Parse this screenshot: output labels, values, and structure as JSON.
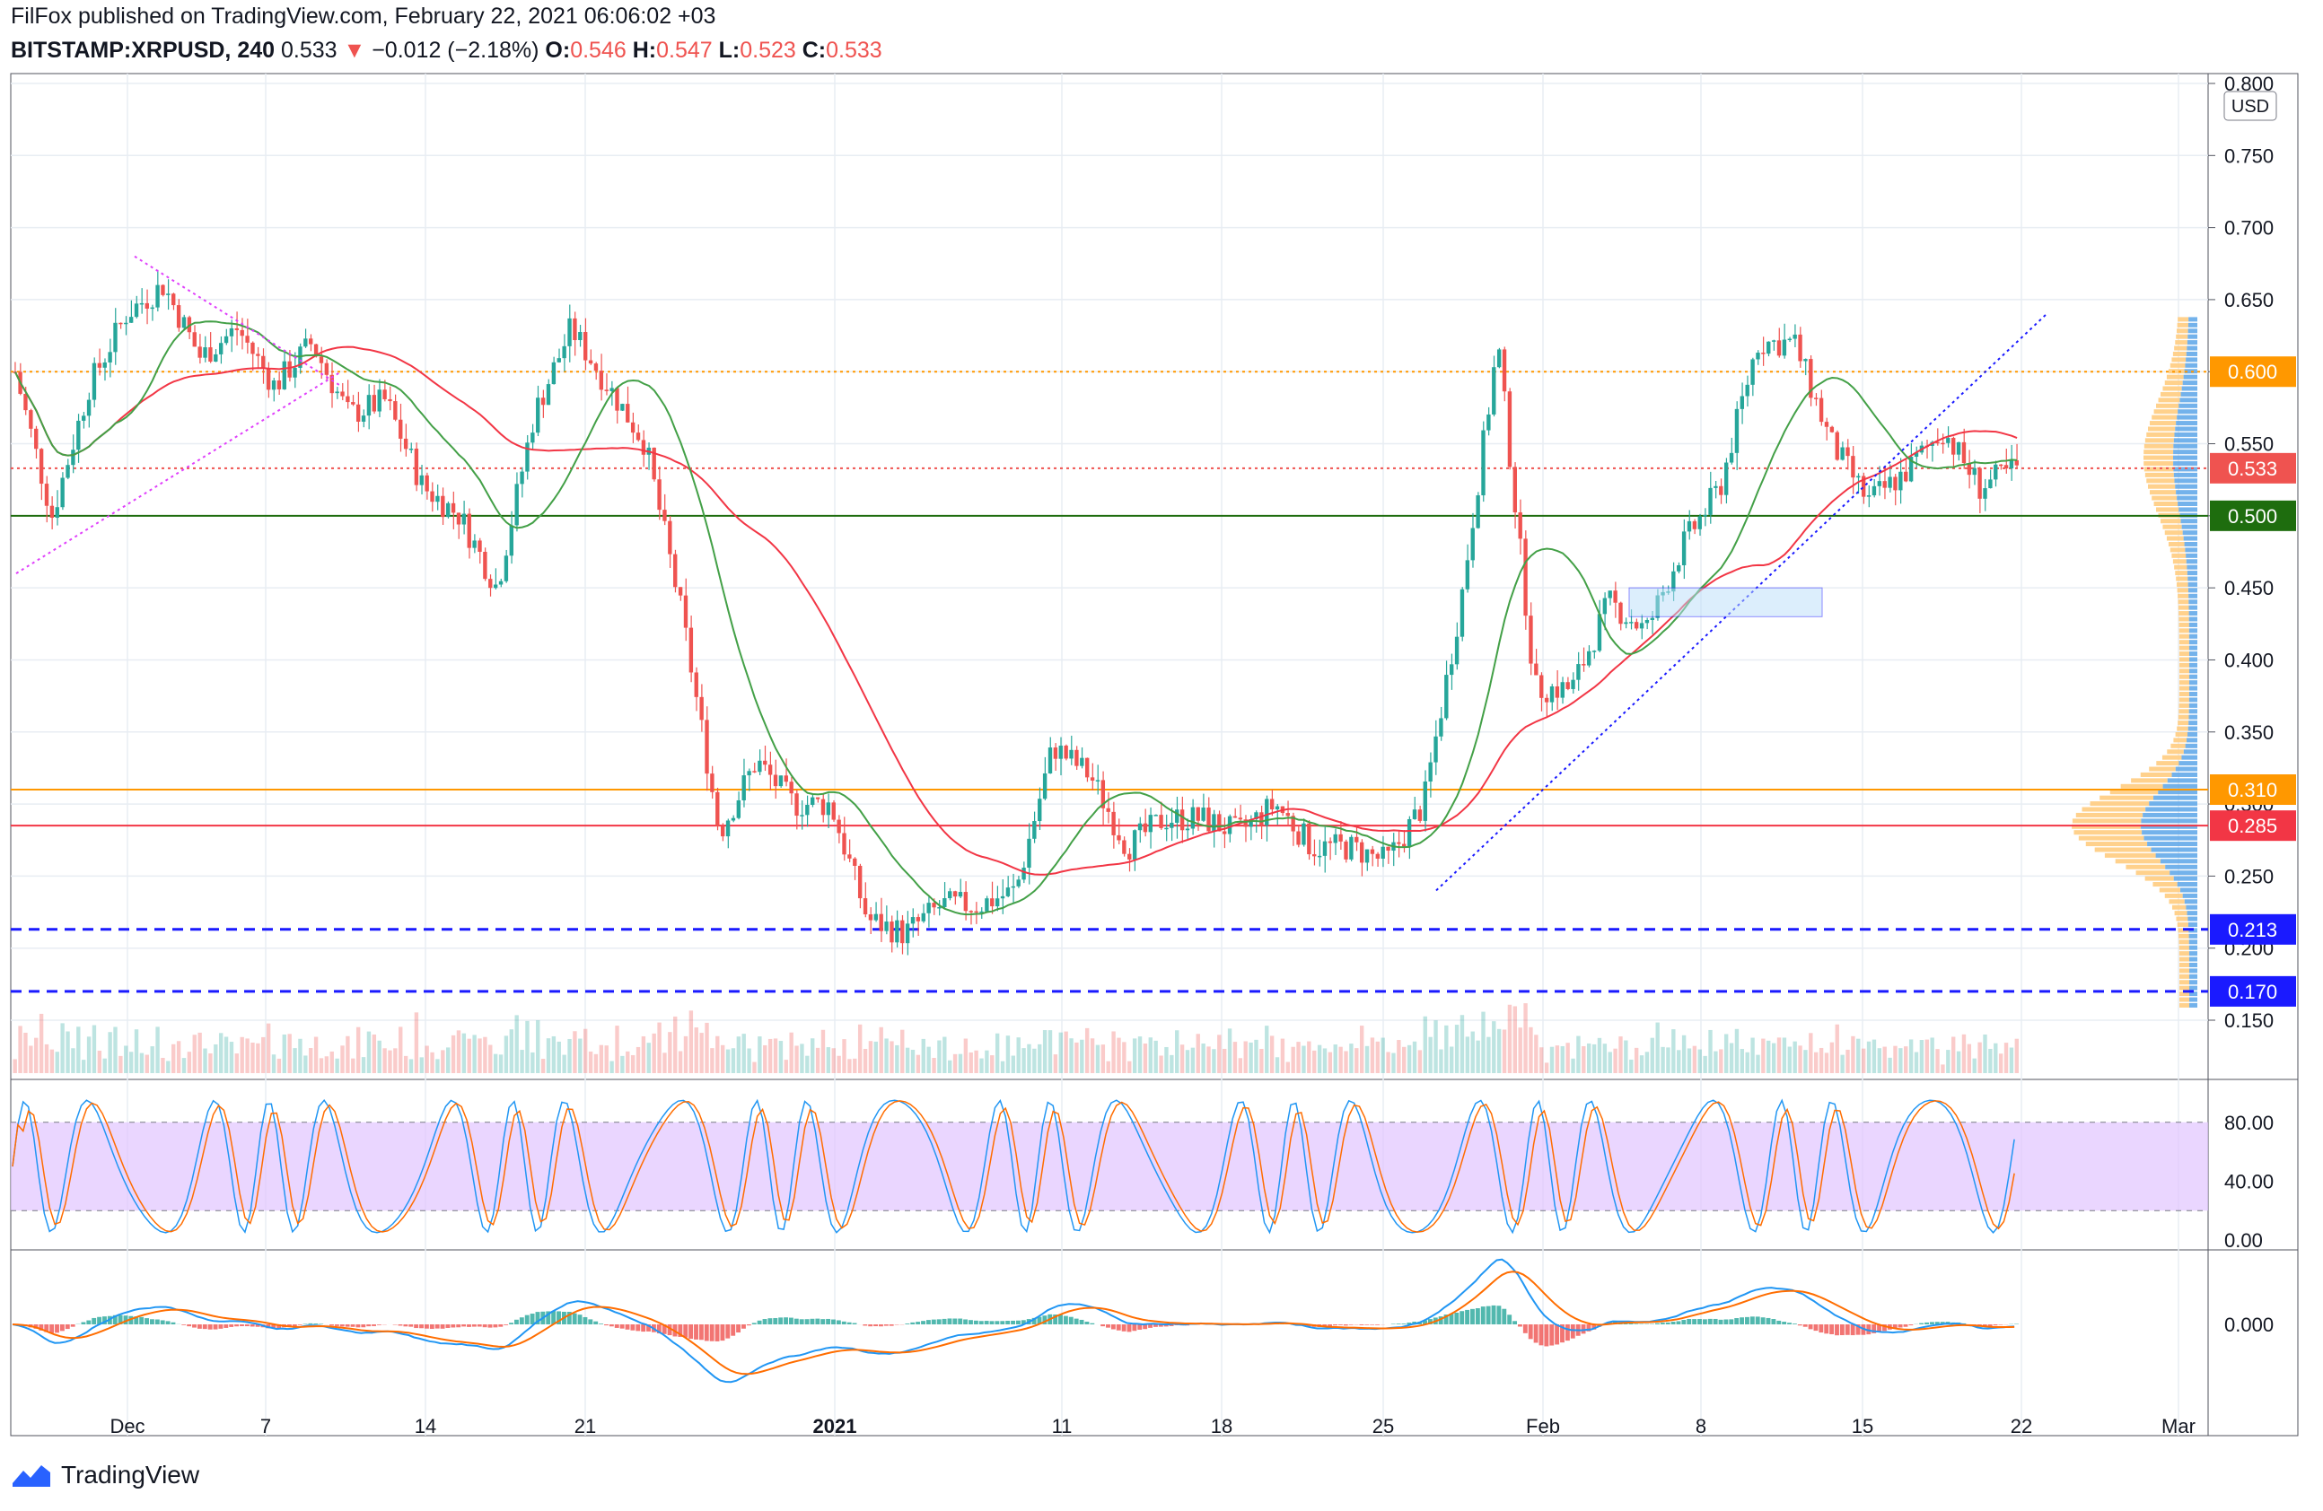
{
  "header": {
    "publisher_line": "FilFox published on TradingView.com, February 22, 2021 06:06:02 +03",
    "symbol": "BITSTAMP:XRPUSD, 240",
    "last": "0.533",
    "change_arrow": "▼",
    "change": "−0.012 (−2.18%)",
    "o_label": "O:",
    "o_value": "0.546",
    "h_label": "H:",
    "h_value": "0.547",
    "l_label": "L:",
    "l_value": "0.523",
    "c_label": "C:",
    "c_value": "0.533"
  },
  "footer": {
    "brand": "TradingView"
  },
  "colors": {
    "up": "#26a69a",
    "down": "#ef5350",
    "orange": "#ff9800",
    "red_line": "#f23645",
    "green_line": "#1e6d0e",
    "blue_dash": "#1a1aff",
    "stoch_band": "#e1c4ff"
  },
  "chart_data": [
    {
      "type": "candlestick",
      "title": "",
      "currency_button": "USD",
      "ylim": [
        0.11,
        0.8
      ],
      "y_ticks": [
        "0.800",
        "0.750",
        "0.700",
        "0.650",
        "0.600",
        "0.550",
        "0.500",
        "0.450",
        "0.400",
        "0.350",
        "0.300",
        "0.250",
        "0.200",
        "0.150"
      ],
      "x_ticks": [
        "Dec",
        "7",
        "14",
        "21",
        "2021",
        "11",
        "18",
        "25",
        "Feb",
        "8",
        "15",
        "22",
        "Mar"
      ],
      "horizontal_levels": [
        {
          "value": 0.6,
          "label": "0.600",
          "color": "#ff9800",
          "style": "dotted"
        },
        {
          "value": 0.533,
          "label": "0.533",
          "color": "#ef5350",
          "style": "dotted"
        },
        {
          "value": 0.5,
          "label": "0.500",
          "color": "#1e6d0e",
          "style": "solid"
        },
        {
          "value": 0.31,
          "label": "0.310",
          "color": "#ff9800",
          "style": "solid"
        },
        {
          "value": 0.285,
          "label": "0.285",
          "color": "#f23645",
          "style": "solid"
        },
        {
          "value": 0.213,
          "label": "0.213",
          "color": "#1a1aff",
          "style": "dashed"
        },
        {
          "value": 0.17,
          "label": "0.170",
          "color": "#1a1aff",
          "style": "dashed"
        }
      ],
      "price_path": [
        [
          "Nov 24",
          0.6
        ],
        [
          "Nov 26",
          0.5
        ],
        [
          "Nov 28",
          0.59
        ],
        [
          "Nov 30",
          0.64
        ],
        [
          "Dec 1",
          0.66
        ],
        [
          "Dec 3",
          0.61
        ],
        [
          "Dec 5",
          0.63
        ],
        [
          "Dec 7",
          0.59
        ],
        [
          "Dec 8",
          0.62
        ],
        [
          "Dec 10",
          0.57
        ],
        [
          "Dec 12",
          0.58
        ],
        [
          "Dec 14",
          0.52
        ],
        [
          "Dec 16",
          0.5
        ],
        [
          "Dec 17",
          0.45
        ],
        [
          "Dec 18",
          0.57
        ],
        [
          "Dec 19",
          0.63
        ],
        [
          "Dec 21",
          0.59
        ],
        [
          "Dec 22",
          0.55
        ],
        [
          "Dec 23",
          0.43
        ],
        [
          "Dec 24",
          0.28
        ],
        [
          "Dec 25",
          0.33
        ],
        [
          "Dec 26",
          0.3
        ],
        [
          "Dec 28",
          0.3
        ],
        [
          "Dec 29",
          0.22
        ],
        [
          "Dec 31",
          0.21
        ],
        [
          "Jan 2",
          0.23
        ],
        [
          "Jan 4",
          0.23
        ],
        [
          "Jan 6",
          0.24
        ],
        [
          "Jan 7",
          0.34
        ],
        [
          "Jan 9",
          0.32
        ],
        [
          "Jan 11",
          0.27
        ],
        [
          "Jan 13",
          0.29
        ],
        [
          "Jan 16",
          0.29
        ],
        [
          "Jan 18",
          0.28
        ],
        [
          "Jan 20",
          0.3
        ],
        [
          "Jan 22",
          0.27
        ],
        [
          "Jan 25",
          0.27
        ],
        [
          "Jan 27",
          0.26
        ],
        [
          "Jan 29",
          0.3
        ],
        [
          "Jan 30",
          0.44
        ],
        [
          "Feb 1",
          0.62
        ],
        [
          "Feb 2",
          0.38
        ],
        [
          "Feb 4",
          0.38
        ],
        [
          "Feb 5",
          0.44
        ],
        [
          "Feb 8",
          0.42
        ],
        [
          "Feb 10",
          0.48
        ],
        [
          "Feb 12",
          0.52
        ],
        [
          "Feb 13",
          0.62
        ],
        [
          "Feb 14",
          0.62
        ],
        [
          "Feb 15",
          0.55
        ],
        [
          "Feb 17",
          0.51
        ],
        [
          "Feb 18",
          0.53
        ],
        [
          "Feb 20",
          0.56
        ],
        [
          "Feb 21",
          0.52
        ],
        [
          "Feb 22",
          0.533
        ]
      ]
    },
    {
      "type": "line",
      "indicator": "stochastic",
      "y_ticks": [
        "80.00",
        "40.00",
        "0.00"
      ],
      "ylim": [
        0,
        100
      ],
      "band": [
        20,
        80
      ]
    },
    {
      "type": "line",
      "indicator": "macd",
      "y_ticks": [
        "0.000"
      ]
    }
  ]
}
